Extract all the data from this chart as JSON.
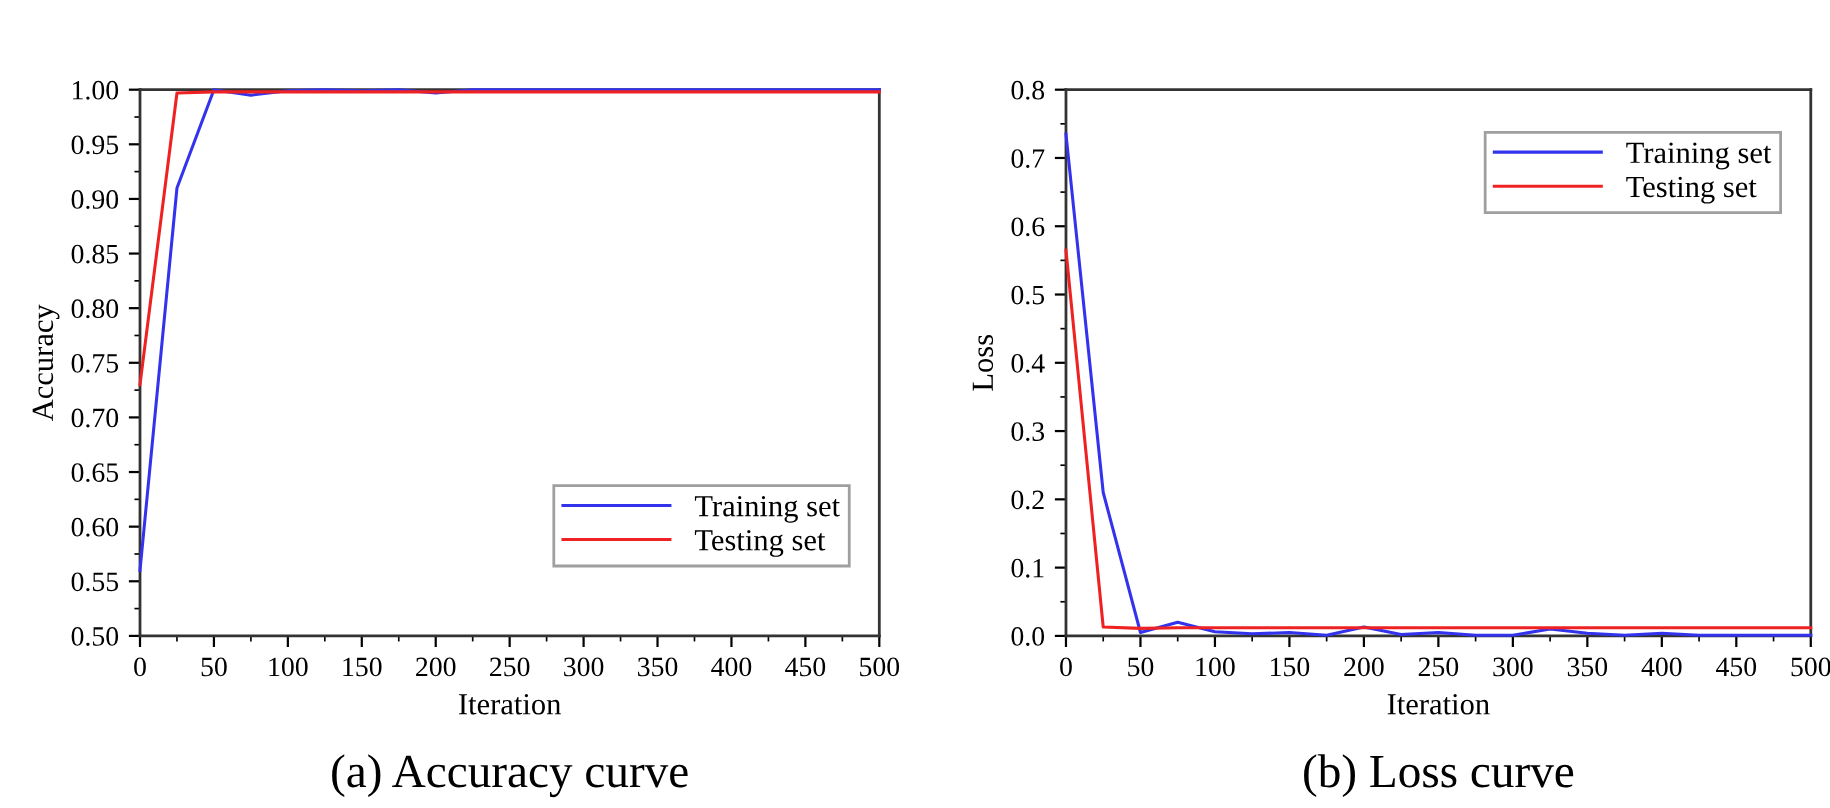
{
  "chart_data": [
    {
      "type": "line",
      "xlabel": "Iteration",
      "ylabel": "Accuracy",
      "annotations": [
        "(a) Accuracy curve"
      ],
      "legend": "bottom right",
      "grid": false,
      "marker": "none",
      "line_style": "solid",
      "x": [
        0,
        25,
        50,
        75,
        100,
        125,
        150,
        175,
        200,
        225,
        250,
        275,
        300,
        325,
        350,
        375,
        400,
        425,
        450,
        475,
        500
      ],
      "xlim": [
        0,
        500
      ],
      "xticks": [
        0,
        50,
        100,
        150,
        200,
        250,
        300,
        350,
        400,
        450,
        500
      ],
      "ylim": [
        0.5,
        1.0
      ],
      "yticks": [
        {
          "value": 0.5,
          "label": "0.50"
        },
        {
          "value": 0.55,
          "label": "0.55"
        },
        {
          "value": 0.6,
          "label": "0.60"
        },
        {
          "value": 0.65,
          "label": "0.65"
        },
        {
          "value": 0.7,
          "label": "0.70"
        },
        {
          "value": 0.75,
          "label": "0.75"
        },
        {
          "value": 0.8,
          "label": "0.80"
        },
        {
          "value": 0.85,
          "label": "0.85"
        },
        {
          "value": 0.9,
          "label": "0.90"
        },
        {
          "value": 0.95,
          "label": "0.95"
        },
        {
          "value": 1.0,
          "label": "1.00"
        }
      ],
      "series": [
        {
          "name": "Training set",
          "color": "#3333ee",
          "values": [
            0.56,
            0.91,
            1.0,
            0.995,
            0.999,
            1.0,
            0.999,
            1.0,
            0.997,
            1.0,
            1.0,
            1.0,
            1.0,
            1.0,
            1.0,
            1.0,
            1.0,
            1.0,
            1.0,
            1.0,
            1.0
          ]
        },
        {
          "name": "Testing set",
          "color": "#ee2222",
          "values": [
            0.73,
            0.997,
            0.998,
            0.998,
            0.998,
            0.998,
            0.998,
            0.998,
            0.998,
            0.998,
            0.998,
            0.998,
            0.998,
            0.998,
            0.998,
            0.998,
            0.998,
            0.998,
            0.998,
            0.998,
            0.998
          ]
        }
      ]
    },
    {
      "type": "line",
      "xlabel": "Iteration",
      "ylabel": "Loss",
      "annotations": [
        "(b) Loss curve"
      ],
      "legend": "top right",
      "grid": false,
      "marker": "none",
      "line_style": "solid",
      "x": [
        0,
        25,
        50,
        75,
        100,
        125,
        150,
        175,
        200,
        225,
        250,
        275,
        300,
        325,
        350,
        375,
        400,
        425,
        450,
        475,
        500
      ],
      "xlim": [
        0,
        500
      ],
      "xticks": [
        0,
        50,
        100,
        150,
        200,
        250,
        300,
        350,
        400,
        450,
        500
      ],
      "ylim": [
        0.0,
        0.8
      ],
      "yticks": [
        {
          "value": 0.0,
          "label": "0.0"
        },
        0.1,
        0.2,
        0.3,
        0.4,
        0.5,
        0.6,
        0.7,
        0.8
      ],
      "series": [
        {
          "name": "Training set",
          "color": "#3333ee",
          "values": [
            0.735,
            0.21,
            0.005,
            0.02,
            0.006,
            0.003,
            0.005,
            0.001,
            0.013,
            0.002,
            0.005,
            0.001,
            0.001,
            0.01,
            0.004,
            0.001,
            0.004,
            0.001,
            0.001,
            0.001,
            0.001
          ]
        },
        {
          "name": "Testing set",
          "color": "#ee2222",
          "values": [
            0.565,
            0.013,
            0.011,
            0.012,
            0.012,
            0.012,
            0.012,
            0.012,
            0.012,
            0.012,
            0.012,
            0.012,
            0.012,
            0.012,
            0.012,
            0.012,
            0.012,
            0.012,
            0.012,
            0.012,
            0.012
          ]
        }
      ]
    }
  ]
}
